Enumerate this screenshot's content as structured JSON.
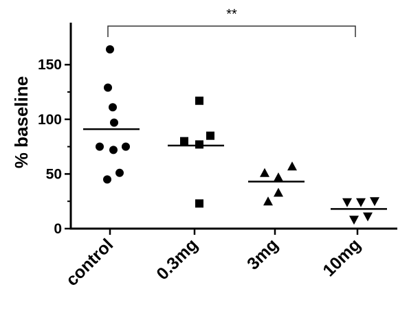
{
  "chart_data": {
    "type": "scatter",
    "title": "",
    "xlabel": "",
    "ylabel": "% baseline",
    "ylim": [
      0,
      170
    ],
    "yticks": [
      0,
      50,
      100,
      150
    ],
    "grid": false,
    "categories": [
      "control",
      "0.3mg",
      "3mg",
      "10mg"
    ],
    "series": [
      {
        "category": "control",
        "marker": "circle",
        "points": [
          [
            0.0,
            164
          ],
          [
            -0.03,
            129
          ],
          [
            0.04,
            111
          ],
          [
            0.06,
            97
          ],
          [
            -0.15,
            75
          ],
          [
            0.23,
            75
          ],
          [
            0.05,
            72
          ],
          [
            0.14,
            51
          ],
          [
            -0.04,
            45
          ]
        ],
        "mean": 91
      },
      {
        "category": "0.3mg",
        "marker": "square",
        "points": [
          [
            0.07,
            117
          ],
          [
            0.23,
            85
          ],
          [
            -0.15,
            80
          ],
          [
            0.07,
            77
          ],
          [
            0.07,
            23
          ]
        ],
        "mean": 76
      },
      {
        "category": "3mg",
        "marker": "triangle-up",
        "points": [
          [
            -0.15,
            51
          ],
          [
            0.25,
            57
          ],
          [
            0.05,
            47
          ],
          [
            0.05,
            33
          ],
          [
            -0.1,
            25
          ]
        ],
        "mean": 43
      },
      {
        "category": "10mg",
        "marker": "triangle-down",
        "points": [
          [
            -0.15,
            24
          ],
          [
            0.05,
            24
          ],
          [
            0.25,
            25
          ],
          [
            -0.05,
            8
          ],
          [
            0.15,
            11
          ]
        ],
        "mean": 18
      }
    ],
    "annotations": [
      {
        "type": "significance-bracket",
        "from": "control",
        "to": "10mg",
        "text": "**"
      }
    ]
  }
}
